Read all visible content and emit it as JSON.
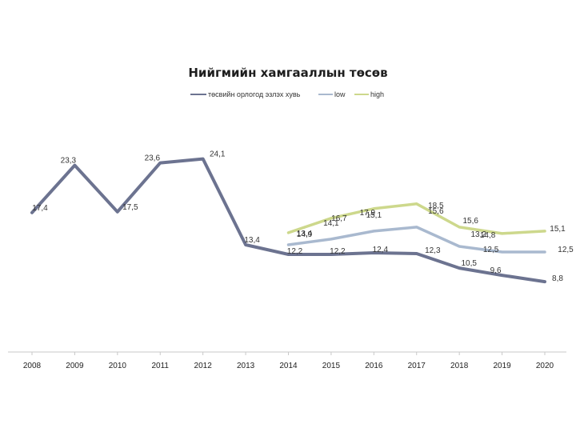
{
  "chart_data": {
    "type": "line",
    "title": "Нийгмийн хамгааллын төсөв",
    "xlabel": "",
    "ylabel": "",
    "ylim": [
      0,
      30
    ],
    "grid": false,
    "legend_position": "top-center",
    "x": [
      "2008",
      "2009",
      "2010",
      "2011",
      "2012",
      "2013",
      "2014",
      "2015",
      "2016",
      "2017",
      "2018",
      "2019",
      "2020"
    ],
    "series": [
      {
        "name": "төсвийн орлогод эзлэх хувь",
        "color": "#6c7390",
        "values": [
          17.4,
          23.3,
          17.5,
          23.6,
          24.1,
          13.4,
          12.2,
          12.2,
          12.4,
          12.3,
          10.5,
          9.6,
          8.8
        ],
        "labels": [
          "17,4",
          "23,3",
          "17,5",
          "23,6",
          "24,1",
          "13,4",
          "12,2",
          "12,2",
          "12,4",
          "12,3",
          "10,5",
          "9,6",
          "8,8"
        ]
      },
      {
        "name": "low",
        "color": "#a9b9cf",
        "values": [
          null,
          null,
          null,
          null,
          null,
          null,
          13.4,
          14.1,
          15.1,
          15.6,
          13.2,
          12.5,
          12.5
        ],
        "labels": [
          "",
          "",
          "",
          "",
          "",
          "",
          "13,4",
          "14,1",
          "15,1",
          "15,6",
          "13,2",
          "12,5",
          "12,5"
        ]
      },
      {
        "name": "high",
        "color": "#cdd88c",
        "values": [
          null,
          null,
          null,
          null,
          null,
          null,
          14.9,
          16.7,
          17.9,
          18.5,
          15.6,
          14.8,
          15.1
        ],
        "labels": [
          "",
          "",
          "",
          "",
          "",
          "",
          "14,9",
          "16,7",
          "17,9",
          "18,5",
          "15,6",
          "14,8",
          "15,1"
        ]
      }
    ]
  }
}
